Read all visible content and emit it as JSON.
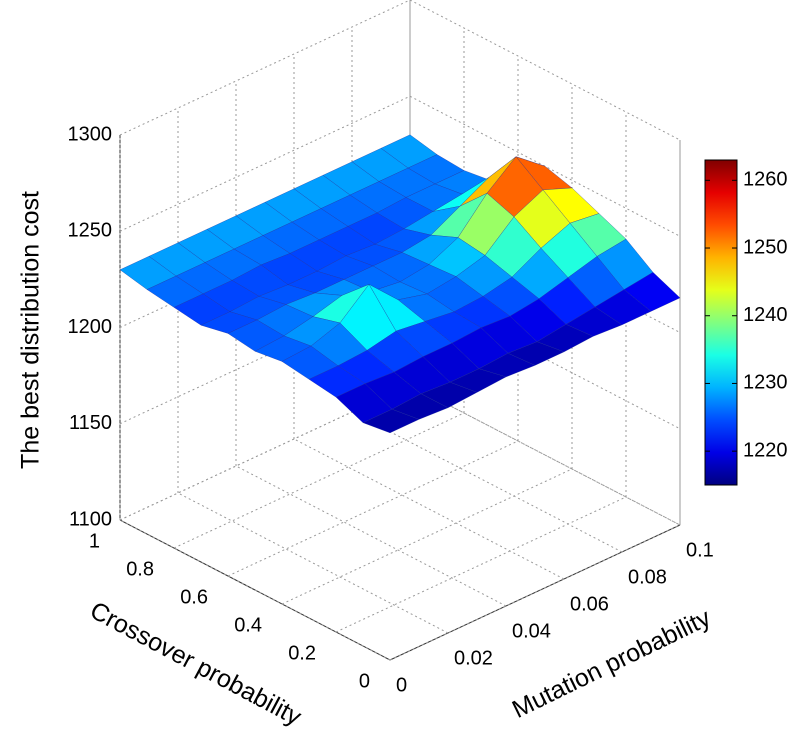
{
  "chart_data": {
    "type": "surface",
    "zlabel": "The best distribution cost",
    "xlabel": "Mutation probability",
    "ylabel": "Crossover probability",
    "colormap": "jet",
    "grid": true,
    "x": [
      0,
      0.01,
      0.02,
      0.03,
      0.04,
      0.05,
      0.06,
      0.07,
      0.08,
      0.09,
      0.1
    ],
    "y": [
      0,
      0.1,
      0.2,
      0.3,
      0.4,
      0.5,
      0.6,
      0.7,
      0.8,
      0.9,
      1
    ],
    "z": [
      [
        1218,
        1218,
        1217,
        1218,
        1219,
        1218,
        1218,
        1219,
        1218,
        1218,
        1218
      ],
      [
        1216,
        1216,
        1217,
        1216,
        1216,
        1217,
        1216,
        1218,
        1220,
        1222,
        1224
      ],
      [
        1222,
        1222,
        1221,
        1222,
        1222,
        1223,
        1222,
        1224,
        1228,
        1232,
        1234
      ],
      [
        1224,
        1224,
        1225,
        1228,
        1226,
        1224,
        1225,
        1228,
        1236,
        1242,
        1240
      ],
      [
        1226,
        1227,
        1232,
        1245,
        1230,
        1226,
        1228,
        1232,
        1245,
        1252,
        1246
      ],
      [
        1224,
        1225,
        1228,
        1232,
        1227,
        1225,
        1227,
        1234,
        1250,
        1262,
        1250
      ],
      [
        1226,
        1226,
        1227,
        1226,
        1226,
        1226,
        1226,
        1228,
        1236,
        1244,
        1238
      ],
      [
        1223,
        1223,
        1224,
        1223,
        1223,
        1224,
        1223,
        1224,
        1226,
        1228,
        1228
      ],
      [
        1225,
        1225,
        1225,
        1226,
        1225,
        1225,
        1225,
        1225,
        1226,
        1226,
        1226
      ],
      [
        1227,
        1227,
        1227,
        1227,
        1227,
        1227,
        1227,
        1227,
        1227,
        1227,
        1227
      ],
      [
        1230,
        1230,
        1230,
        1230,
        1230,
        1230,
        1230,
        1230,
        1230,
        1230,
        1230
      ]
    ],
    "xlim": [
      0,
      0.1
    ],
    "ylim": [
      0,
      1
    ],
    "zlim": [
      1100,
      1300
    ],
    "xticks": [
      0,
      0.02,
      0.04,
      0.06,
      0.08,
      0.1
    ],
    "yticks": [
      0,
      0.2,
      0.4,
      0.6,
      0.8,
      1
    ],
    "zticks": [
      1100,
      1150,
      1200,
      1250,
      1300
    ],
    "clim": [
      1215,
      1263
    ],
    "cticks": [
      1220,
      1230,
      1240,
      1250,
      1260
    ]
  }
}
